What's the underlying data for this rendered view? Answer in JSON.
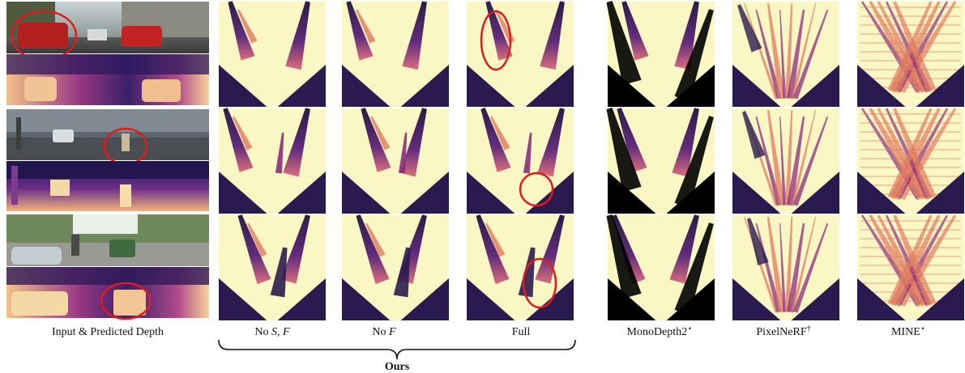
{
  "figure": {
    "input_caption": "Input & Predicted Depth",
    "column_labels": {
      "no_s_f_prefix": "No ",
      "no_s_f_italic": "S, F",
      "no_f_prefix": "No ",
      "no_f_italic": "F",
      "full": "Full",
      "monodepth2": "MonoDepth2",
      "monodepth2_mark": "⋆",
      "pixelnerf": "PixelNeRF",
      "pixelnerf_mark": "†",
      "mine": "MINE",
      "mine_mark": "⋆"
    },
    "group_label": "Ours",
    "colors": {
      "free_space": "#fbf7c4",
      "occupied_dark": "#2b1a4f",
      "occupied_mid": "#8a2d7d",
      "occupied_warm": "#e07a5f",
      "highlight_circle": "#e01b1b"
    }
  }
}
